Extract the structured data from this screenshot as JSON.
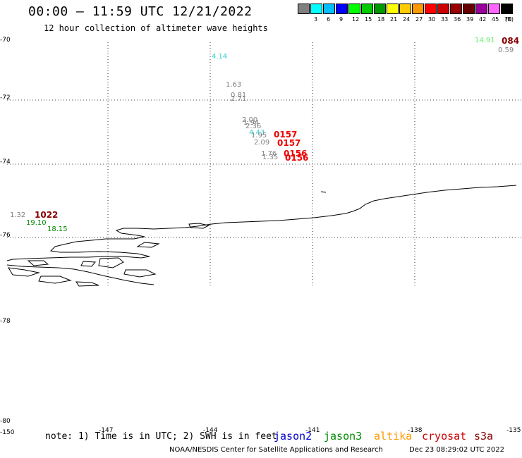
{
  "header": {
    "title": "00:00 – 11:59 UTC 12/21/2022",
    "subtitle": "12 hour collection of altimeter wave heights"
  },
  "legend": {
    "unit": "(ft)",
    "bins": [
      {
        "value": "",
        "color": "#808080"
      },
      {
        "value": "3",
        "color": "#00ffff"
      },
      {
        "value": "6",
        "color": "#00bfff"
      },
      {
        "value": "9",
        "color": "#0000ff"
      },
      {
        "value": "12",
        "color": "#00ff00"
      },
      {
        "value": "15",
        "color": "#00cc00"
      },
      {
        "value": "18",
        "color": "#009900"
      },
      {
        "value": "21",
        "color": "#ffff00"
      },
      {
        "value": "24",
        "color": "#ffcc00"
      },
      {
        "value": "27",
        "color": "#ff9900"
      },
      {
        "value": "30",
        "color": "#ff0000"
      },
      {
        "value": "33",
        "color": "#cc0000"
      },
      {
        "value": "36",
        "color": "#990000"
      },
      {
        "value": "39",
        "color": "#660000"
      },
      {
        "value": "42",
        "color": "#990099"
      },
      {
        "value": "45",
        "color": "#ff66ff"
      },
      {
        "value": "70",
        "color": "#000000"
      }
    ]
  },
  "axes": {
    "y_labels": [
      "-70",
      "-72",
      "-74",
      "-76",
      "-78",
      "-78",
      "-80"
    ],
    "x_labels": [
      "-150",
      "-147",
      "-144",
      "-141",
      "-138",
      "-135"
    ]
  },
  "observations": [
    {
      "text": "4.14",
      "color": "#33cccc"
    },
    {
      "text": "1.63",
      "color": "#808080"
    },
    {
      "text": "0.81",
      "color": "#808080"
    },
    {
      "text": "2.71",
      "color": "#808080"
    },
    {
      "text": "2.00",
      "color": "#808080"
    },
    {
      "text": "1.94",
      "color": "#808080"
    },
    {
      "text": "2.36",
      "color": "#808080"
    },
    {
      "text": "4.43",
      "color": "#33cccc"
    },
    {
      "text": "1.95",
      "color": "#808080"
    },
    {
      "text": "2.09",
      "color": "#808080"
    },
    {
      "text": "1.76",
      "color": "#808080"
    },
    {
      "text": "1.35",
      "color": "#808080"
    },
    {
      "text": "0157",
      "color": "#ee0000"
    },
    {
      "text": "0157",
      "color": "#ee0000"
    },
    {
      "text": "0156",
      "color": "#ee0000"
    },
    {
      "text": "0156",
      "color": "#ee0000"
    },
    {
      "text": "14.91",
      "color": "#66ee66"
    },
    {
      "text": "0.59",
      "color": "#808080"
    },
    {
      "text": "084",
      "color": "#880000"
    },
    {
      "text": "1.32",
      "color": "#808080"
    },
    {
      "text": "1022",
      "color": "#880000"
    },
    {
      "text": "19.10",
      "color": "#008800"
    },
    {
      "text": "18.15",
      "color": "#008800"
    }
  ],
  "footer": {
    "note": "note: 1) Time is in UTC; 2) SWH is in feet",
    "satellites": [
      {
        "name": "jason2",
        "color": "#0000cc"
      },
      {
        "name": "jason3",
        "color": "#008800"
      },
      {
        "name": "altika",
        "color": "#ff9900"
      },
      {
        "name": "cryosat",
        "color": "#cc0000"
      },
      {
        "name": "s3a",
        "color": "#880000"
      }
    ],
    "credit": "NOAA/NESDIS Center for Satellite Applications and Research",
    "timestamp": "Dec 23 08:29:02 UTC 2022"
  }
}
